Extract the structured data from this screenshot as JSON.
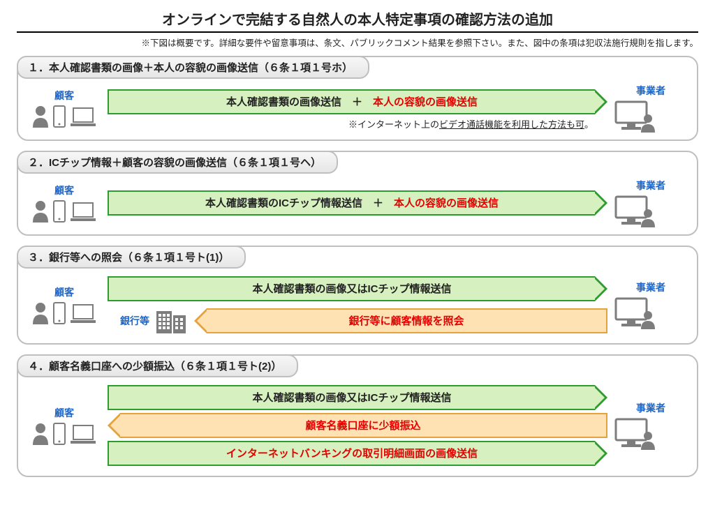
{
  "colors": {
    "green_fill": "#d6f0bf",
    "green_stroke": "#2e9b2e",
    "orange_fill": "#ffe2b3",
    "orange_stroke": "#e6a23c",
    "title_color": "#000000",
    "actor_label_color": "#1f66c7",
    "red_text": "#e60000",
    "panel_border": "#bfbfbf",
    "icon_gray": "#7d7d7d"
  },
  "title": "オンラインで完結する自然人の本人特定事項の確認方法の追加",
  "subtitle": "※下図は概要です。詳細な要件や留意事項は、条文、パブリックコメント結果を参照下さい。また、図中の条項は犯収法施行規則を指します。",
  "labels": {
    "customer": "顧客",
    "operator": "事業者",
    "bank": "銀行等"
  },
  "sections": [
    {
      "header": "１．本人確認書類の画像＋本人の容貌の画像送信（６条１項１号ホ）",
      "arrows": [
        {
          "dir": "right",
          "style": "green",
          "parts": [
            {
              "text": "本人確認書類の画像送信　＋　",
              "color": "black"
            },
            {
              "text": "本人の容貌の画像送信",
              "color": "red"
            }
          ]
        }
      ],
      "note_prefix": "※インターネット上の",
      "note_underlined": "ビデオ通話機能を利用した方法も可",
      "note_suffix": "。"
    },
    {
      "header": "２．ICチップ情報＋顧客の容貌の画像送信（６条１項１号ヘ）",
      "arrows": [
        {
          "dir": "right",
          "style": "green",
          "parts": [
            {
              "text": "本人確認書類のICチップ情報送信　＋　",
              "color": "black"
            },
            {
              "text": "本人の容貌の画像送信",
              "color": "red"
            }
          ]
        }
      ]
    },
    {
      "header": "３．銀行等への照会（６条１項１号ト(1)）",
      "arrows": [
        {
          "dir": "right",
          "style": "green",
          "parts": [
            {
              "text": "本人確認書類の画像又はICチップ情報送信",
              "color": "black"
            }
          ]
        }
      ],
      "bank_arrow": {
        "dir": "left",
        "style": "orange",
        "parts": [
          {
            "text": "銀行等に顧客情報を照会",
            "color": "red"
          }
        ]
      }
    },
    {
      "header": "４．顧客名義口座への少額振込（６条１項１号ト(2)）",
      "arrows": [
        {
          "dir": "right",
          "style": "green",
          "parts": [
            {
              "text": "本人確認書類の画像又はICチップ情報送信",
              "color": "black"
            }
          ]
        },
        {
          "dir": "left",
          "style": "orange",
          "parts": [
            {
              "text": "顧客名義口座に少額振込",
              "color": "red"
            }
          ]
        },
        {
          "dir": "right",
          "style": "green",
          "parts": [
            {
              "text": "インターネットバンキングの取引明細画面の画像送信",
              "color": "red"
            }
          ]
        }
      ]
    }
  ]
}
